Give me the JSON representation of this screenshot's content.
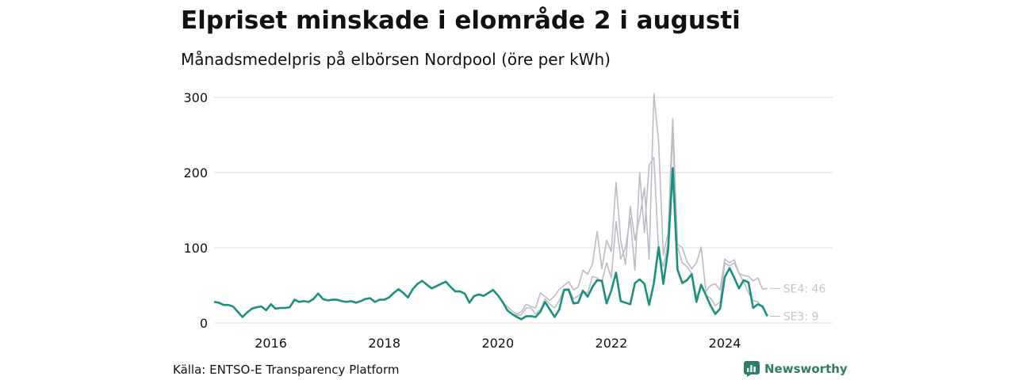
{
  "title": "Elpriset minskade i elområde 2 i augusti",
  "subtitle": "Månadsmedelpris på elbörsen Nordpool (öre per kWh)",
  "source": "Källa: ENTSO-E Transparency Platform",
  "brand": "Newsworthy",
  "colors": {
    "highlight": "#1a9080",
    "muted": "#bdbcc6",
    "grid": "#dddddd",
    "label": "#c6c6c6"
  },
  "chart_data": {
    "type": "line",
    "xlim": [
      2015.0,
      2025.9
    ],
    "ylim": [
      0,
      300
    ],
    "y_ticks": [
      0,
      100,
      200,
      300
    ],
    "x_ticks": [
      2016,
      2018,
      2020,
      2022,
      2024
    ],
    "start": {
      "year": 2015,
      "month": 1
    },
    "series": [
      {
        "name": "",
        "highlight": true,
        "values": [
          28,
          27,
          24,
          24,
          22,
          15,
          8,
          14,
          19,
          21,
          22,
          17,
          25,
          19,
          20,
          20,
          21,
          31,
          28,
          29,
          28,
          32,
          39,
          32,
          30,
          31,
          31,
          29,
          28,
          29,
          27,
          29,
          32,
          33,
          28,
          31,
          31,
          34,
          40,
          45,
          40,
          34,
          45,
          52,
          56,
          51,
          46,
          49,
          52,
          55,
          48,
          42,
          42,
          39,
          27,
          36,
          38,
          36,
          40,
          44,
          37,
          28,
          17,
          12,
          8,
          5,
          9,
          9,
          8,
          15,
          28,
          18,
          8,
          18,
          44,
          44,
          26,
          27,
          43,
          35,
          48,
          57,
          56,
          26,
          43,
          67,
          29,
          27,
          25,
          53,
          58,
          52,
          24,
          53,
          101,
          52,
          97,
          206,
          71,
          53,
          57,
          65,
          28,
          51,
          37,
          23,
          12,
          19,
          61,
          73,
          60,
          46,
          57,
          54,
          20,
          25,
          22,
          9
        ],
        "end_label": ""
      },
      {
        "name": "SE3",
        "highlight": false,
        "values": [
          28,
          27,
          24,
          24,
          22,
          15,
          8,
          14,
          19,
          21,
          22,
          17,
          25,
          19,
          20,
          20,
          21,
          31,
          28,
          29,
          28,
          32,
          39,
          32,
          30,
          31,
          31,
          29,
          28,
          29,
          27,
          29,
          32,
          33,
          28,
          31,
          31,
          34,
          40,
          45,
          40,
          34,
          45,
          52,
          56,
          51,
          46,
          49,
          52,
          55,
          48,
          42,
          42,
          39,
          27,
          36,
          38,
          36,
          40,
          44,
          37,
          28,
          17,
          12,
          10,
          11,
          20,
          20,
          12,
          18,
          32,
          25,
          20,
          30,
          45,
          46,
          32,
          36,
          42,
          40,
          62,
          60,
          55,
          80,
          60,
          135,
          85,
          100,
          140,
          70,
          200,
          120,
          210,
          220,
          95,
          75,
          106,
          255,
          102,
          80,
          75,
          66,
          35,
          49,
          37,
          33,
          23,
          28,
          80,
          76,
          80,
          66,
          55,
          40,
          30,
          28,
          20,
          9
        ],
        "end_label": "SE3: 9"
      },
      {
        "name": "SE4",
        "highlight": false,
        "values": [
          28,
          27,
          24,
          24,
          22,
          15,
          8,
          14,
          19,
          21,
          22,
          17,
          25,
          19,
          20,
          20,
          21,
          31,
          28,
          29,
          28,
          32,
          39,
          32,
          30,
          31,
          31,
          29,
          28,
          29,
          27,
          29,
          32,
          33,
          28,
          31,
          31,
          34,
          40,
          45,
          40,
          34,
          45,
          52,
          56,
          51,
          46,
          49,
          52,
          55,
          48,
          42,
          42,
          39,
          27,
          36,
          38,
          36,
          40,
          44,
          37,
          28,
          22,
          16,
          12,
          15,
          25,
          22,
          20,
          40,
          35,
          30,
          36,
          45,
          50,
          55,
          44,
          48,
          70,
          65,
          78,
          122,
          72,
          110,
          95,
          187,
          110,
          78,
          155,
          110,
          140,
          180,
          85,
          305,
          240,
          90,
          120,
          272,
          105,
          100,
          82,
          72,
          80,
          101,
          42,
          50,
          52,
          44,
          85,
          80,
          84,
          66,
          63,
          62,
          56,
          60,
          45,
          46
        ],
        "end_label": "SE4: 46"
      }
    ]
  }
}
